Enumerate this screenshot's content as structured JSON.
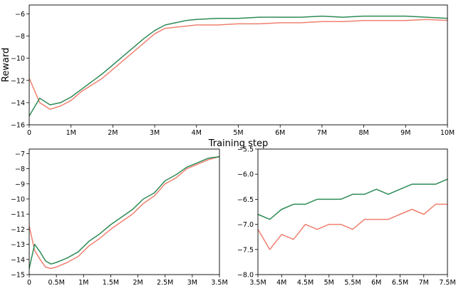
{
  "colors": {
    "series_a": "#f08070",
    "series_b": "#2e8b57"
  },
  "chart_data": [
    {
      "type": "line",
      "xlabel": "Training step",
      "ylabel": "Reward",
      "xlim": [
        0,
        10000000
      ],
      "ylim": [
        -16,
        -5.2
      ],
      "grid": false,
      "xticks": [
        0,
        1000000,
        2000000,
        3000000,
        4000000,
        5000000,
        6000000,
        7000000,
        8000000,
        9000000,
        10000000
      ],
      "xtick_labels": [
        "0",
        "1M",
        "2M",
        "3M",
        "4M",
        "5M",
        "6M",
        "7M",
        "8M",
        "9M",
        "10M"
      ],
      "yticks": [
        -16,
        -14,
        -12,
        -10,
        -8,
        -6
      ],
      "ytick_labels": [
        "−16",
        "−14",
        "−12",
        "−10",
        "−8",
        "−6"
      ],
      "series": [
        {
          "color": "#f08070",
          "x": [
            0,
            250000,
            500000,
            750000,
            1000000,
            1250000,
            1500000,
            1750000,
            2000000,
            2250000,
            2500000,
            2750000,
            3000000,
            3250000,
            3500000,
            3750000,
            4000000,
            4500000,
            5000000,
            5500000,
            6000000,
            6500000,
            7000000,
            7500000,
            8000000,
            8500000,
            9000000,
            9500000,
            10000000
          ],
          "y": [
            -11.8,
            -14.0,
            -14.6,
            -14.3,
            -13.8,
            -13.0,
            -12.4,
            -11.8,
            -11.0,
            -10.2,
            -9.4,
            -8.6,
            -7.8,
            -7.3,
            -7.2,
            -7.1,
            -7.0,
            -7.0,
            -6.9,
            -6.9,
            -6.8,
            -6.8,
            -6.7,
            -6.7,
            -6.6,
            -6.6,
            -6.6,
            -6.5,
            -6.6
          ]
        },
        {
          "color": "#2e8b57",
          "x": [
            0,
            250000,
            500000,
            750000,
            1000000,
            1250000,
            1500000,
            1750000,
            2000000,
            2250000,
            2500000,
            2750000,
            3000000,
            3250000,
            3500000,
            3750000,
            4000000,
            4500000,
            5000000,
            5500000,
            6000000,
            6500000,
            7000000,
            7500000,
            8000000,
            8500000,
            9000000,
            9500000,
            10000000
          ],
          "y": [
            -15.2,
            -13.6,
            -14.2,
            -14.0,
            -13.5,
            -12.8,
            -12.1,
            -11.4,
            -10.6,
            -9.8,
            -9.0,
            -8.2,
            -7.5,
            -7.0,
            -6.8,
            -6.6,
            -6.5,
            -6.4,
            -6.4,
            -6.3,
            -6.3,
            -6.3,
            -6.2,
            -6.3,
            -6.2,
            -6.2,
            -6.2,
            -6.3,
            -6.4
          ]
        }
      ]
    },
    {
      "type": "line",
      "xlabel": "",
      "ylabel": "",
      "xlim": [
        0,
        3500000
      ],
      "ylim": [
        -15,
        -6.7
      ],
      "grid": false,
      "xticks": [
        0,
        500000,
        1000000,
        1500000,
        2000000,
        2500000,
        3000000,
        3500000
      ],
      "xtick_labels": [
        "0",
        "0.5M",
        "1M",
        "1.5M",
        "2M",
        "2.5M",
        "3M",
        "3.5M"
      ],
      "yticks": [
        -15,
        -14,
        -13,
        -12,
        -11,
        -10,
        -9,
        -8,
        -7
      ],
      "ytick_labels": [
        "−15",
        "−14",
        "−13",
        "−12",
        "−11",
        "−10",
        "−9",
        "−8",
        "−7"
      ],
      "series": [
        {
          "color": "#f08070",
          "x": [
            0,
            100000,
            200000,
            300000,
            400000,
            500000,
            700000,
            900000,
            1100000,
            1300000,
            1500000,
            1700000,
            1900000,
            2100000,
            2300000,
            2500000,
            2700000,
            2900000,
            3100000,
            3300000,
            3500000
          ],
          "y": [
            -11.8,
            -13.4,
            -14.0,
            -14.5,
            -14.6,
            -14.5,
            -14.2,
            -13.8,
            -13.1,
            -12.6,
            -12.0,
            -11.5,
            -11.0,
            -10.3,
            -9.8,
            -9.0,
            -8.6,
            -8.0,
            -7.7,
            -7.4,
            -7.2
          ]
        },
        {
          "color": "#2e8b57",
          "x": [
            0,
            100000,
            200000,
            300000,
            400000,
            500000,
            700000,
            900000,
            1100000,
            1300000,
            1500000,
            1700000,
            1900000,
            2100000,
            2300000,
            2500000,
            2700000,
            2900000,
            3100000,
            3300000,
            3500000
          ],
          "y": [
            -14.6,
            -13.0,
            -13.5,
            -14.1,
            -14.3,
            -14.2,
            -13.9,
            -13.5,
            -12.8,
            -12.3,
            -11.7,
            -11.2,
            -10.7,
            -10.0,
            -9.6,
            -8.8,
            -8.4,
            -7.9,
            -7.6,
            -7.3,
            -7.2
          ]
        }
      ]
    },
    {
      "type": "line",
      "xlabel": "",
      "ylabel": "",
      "xlim": [
        3500000,
        7500000
      ],
      "ylim": [
        -8.0,
        -5.5
      ],
      "grid": false,
      "xticks": [
        3500000,
        4000000,
        4500000,
        5000000,
        5500000,
        6000000,
        6500000,
        7000000,
        7500000
      ],
      "xtick_labels": [
        "3.5M",
        "4M",
        "4.5M",
        "5M",
        "5.5M",
        "6M",
        "6.5M",
        "7M",
        "7.5M"
      ],
      "yticks": [
        -8.0,
        -7.5,
        -7.0,
        -6.5,
        -6.0,
        -5.5
      ],
      "ytick_labels": [
        "−8.0",
        "−7.5",
        "−7.0",
        "−6.5",
        "−6.0",
        "−5.5"
      ],
      "series": [
        {
          "color": "#f08070",
          "x": [
            3500000,
            3750000,
            4000000,
            4250000,
            4500000,
            4750000,
            5000000,
            5250000,
            5500000,
            5750000,
            6000000,
            6250000,
            6500000,
            6750000,
            7000000,
            7250000,
            7500000
          ],
          "y": [
            -7.1,
            -7.5,
            -7.2,
            -7.3,
            -7.0,
            -7.1,
            -7.0,
            -7.0,
            -7.1,
            -6.9,
            -6.9,
            -6.9,
            -6.8,
            -6.7,
            -6.8,
            -6.6,
            -6.6
          ]
        },
        {
          "color": "#2e8b57",
          "x": [
            3500000,
            3750000,
            4000000,
            4250000,
            4500000,
            4750000,
            5000000,
            5250000,
            5500000,
            5750000,
            6000000,
            6250000,
            6500000,
            6750000,
            7000000,
            7250000,
            7500000
          ],
          "y": [
            -6.8,
            -6.9,
            -6.7,
            -6.6,
            -6.6,
            -6.5,
            -6.5,
            -6.5,
            -6.4,
            -6.4,
            -6.3,
            -6.4,
            -6.3,
            -6.2,
            -6.2,
            -6.2,
            -6.1
          ]
        }
      ]
    }
  ]
}
